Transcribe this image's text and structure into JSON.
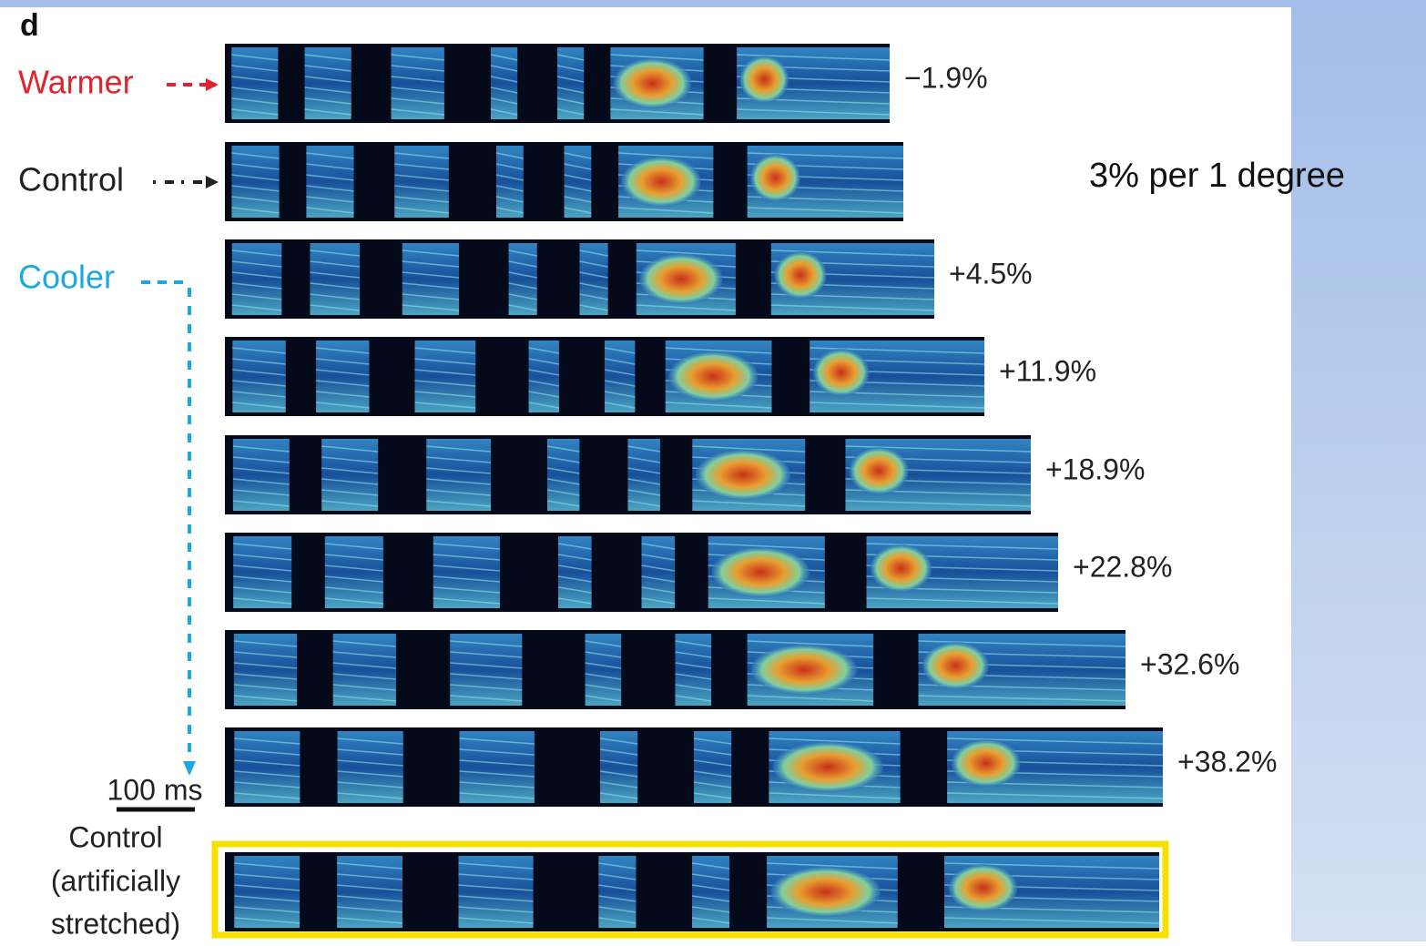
{
  "panel_letter": "d",
  "side_labels": {
    "warmer": "Warmer",
    "control": "Control",
    "cooler": "Cooler"
  },
  "percent_labels": [
    "−1.9%",
    "+4.5%",
    "+11.9%",
    "+18.9%",
    "+22.8%",
    "+32.6%",
    "+38.2%"
  ],
  "scale_bar": "100 ms",
  "stretched_label": [
    "Control",
    "(artificially",
    "stretched)"
  ],
  "note": "3% per 1 degree"
}
